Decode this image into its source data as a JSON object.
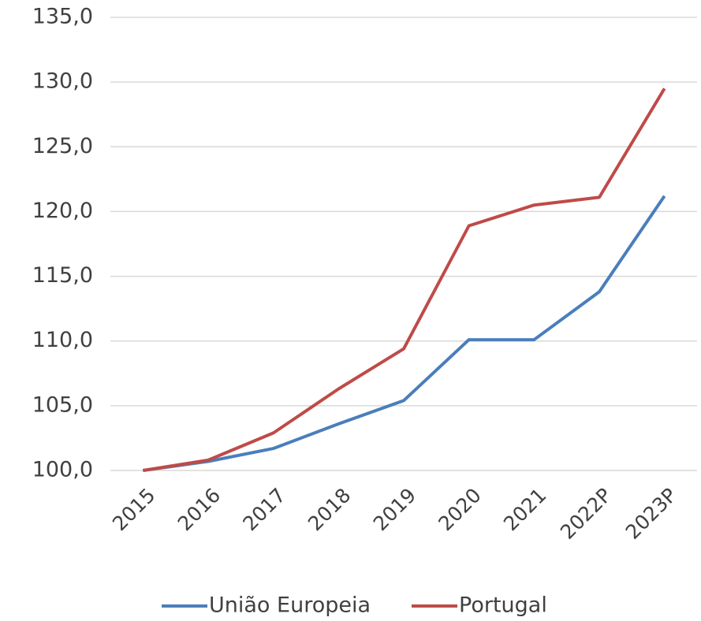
{
  "chart_data": {
    "type": "line",
    "categories": [
      "2015",
      "2016",
      "2017",
      "2018",
      "2019",
      "2020",
      "2021",
      "2022P",
      "2023P"
    ],
    "series": [
      {
        "name": "União Europeia",
        "color": "#4a7ebb",
        "values": [
          100.0,
          100.7,
          101.7,
          103.6,
          105.4,
          110.1,
          110.1,
          113.8,
          121.2
        ]
      },
      {
        "name": "Portugal",
        "color": "#be4b48",
        "values": [
          100.0,
          100.8,
          102.9,
          106.3,
          109.4,
          118.9,
          120.5,
          121.1,
          129.5
        ]
      }
    ],
    "ylim": [
      100,
      135
    ],
    "yticks": [
      {
        "value": 100,
        "label": "100,0"
      },
      {
        "value": 105,
        "label": "105,0"
      },
      {
        "value": 110,
        "label": "110,0"
      },
      {
        "value": 115,
        "label": "115,0"
      },
      {
        "value": 120,
        "label": "120,0"
      },
      {
        "value": 125,
        "label": "125,0"
      },
      {
        "value": 130,
        "label": "130,0"
      },
      {
        "value": 135,
        "label": "135,0"
      }
    ],
    "grid": true,
    "legend": "bottom"
  }
}
